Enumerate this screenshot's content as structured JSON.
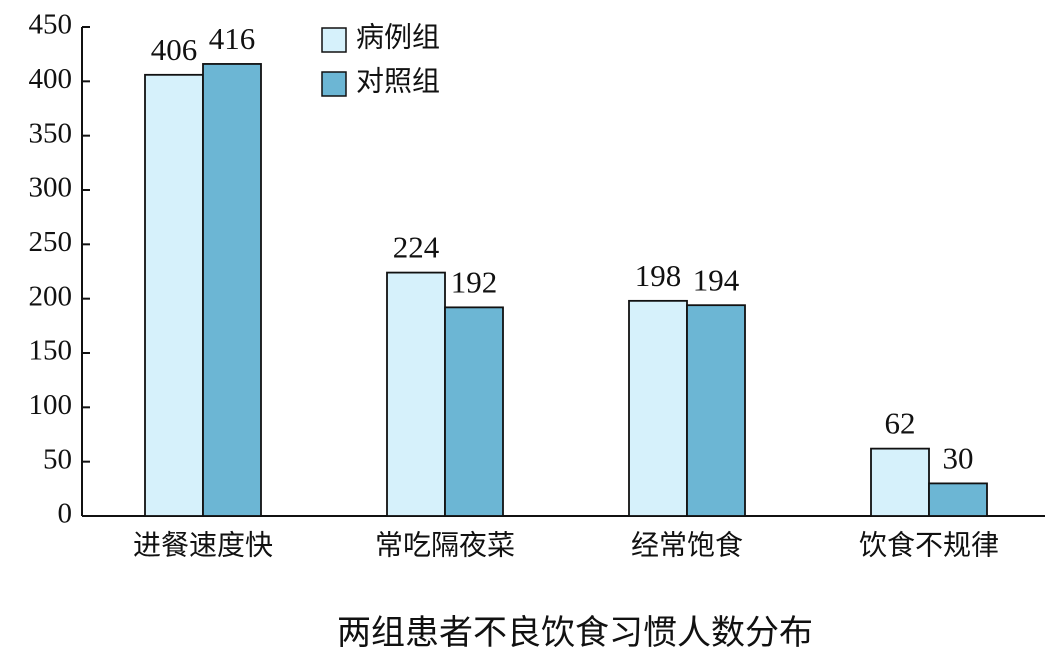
{
  "chart_data": {
    "type": "bar",
    "title": "两组患者不良饮食习惯人数分布",
    "categories": [
      "进餐速度快",
      "常吃隔夜菜",
      "经常饱食",
      "饮食不规律"
    ],
    "series": [
      {
        "name": "病例组",
        "color": "#d6f1fb",
        "values": [
          406,
          224,
          198,
          62
        ]
      },
      {
        "name": "对照组",
        "color": "#6cb6d4",
        "values": [
          416,
          192,
          194,
          30
        ]
      }
    ],
    "ylim": [
      0,
      450
    ],
    "yticks": [
      0,
      50,
      100,
      150,
      200,
      250,
      300,
      350,
      400,
      450
    ],
    "legend": "top-left"
  }
}
